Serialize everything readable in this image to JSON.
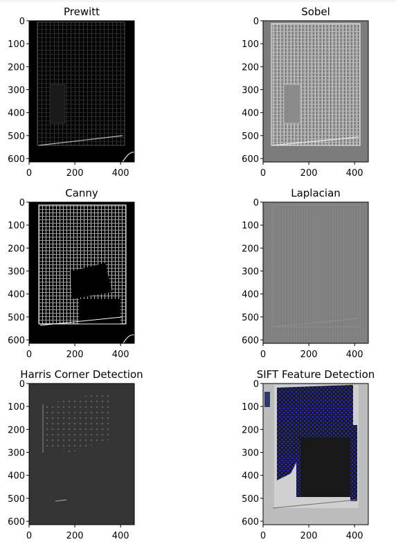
{
  "chart_data": [
    {
      "type": "image",
      "title": "Prewitt",
      "xticks": [
        0,
        200,
        400
      ],
      "yticks": [
        0,
        100,
        200,
        300,
        400,
        500,
        600
      ],
      "xlim": [
        0,
        460
      ],
      "ylim": [
        0,
        615
      ],
      "style": "dark-edges"
    },
    {
      "type": "image",
      "title": "Sobel",
      "xticks": [
        0,
        200,
        400
      ],
      "yticks": [
        0,
        100,
        200,
        300,
        400,
        500,
        600
      ],
      "xlim": [
        0,
        460
      ],
      "ylim": [
        0,
        615
      ],
      "style": "gray-emboss"
    },
    {
      "type": "image",
      "title": "Canny",
      "xticks": [
        0,
        200,
        400
      ],
      "yticks": [
        0,
        100,
        200,
        300,
        400,
        500,
        600
      ],
      "xlim": [
        0,
        460
      ],
      "ylim": [
        0,
        615
      ],
      "style": "canny"
    },
    {
      "type": "image",
      "title": "Laplacian",
      "xticks": [
        0,
        200,
        400
      ],
      "yticks": [
        0,
        100,
        200,
        300,
        400,
        500,
        600
      ],
      "xlim": [
        0,
        460
      ],
      "ylim": [
        0,
        615
      ],
      "style": "flat-gray"
    },
    {
      "type": "image",
      "title": "Harris Corner Detection",
      "xticks": [
        0,
        200,
        400
      ],
      "yticks": [
        0,
        100,
        200,
        300,
        400,
        500,
        600
      ],
      "xlim": [
        0,
        460
      ],
      "ylim": [
        0,
        615
      ],
      "style": "harris"
    },
    {
      "type": "image",
      "title": "SIFT Feature Detection",
      "xticks": [
        0,
        200,
        400
      ],
      "yticks": [
        0,
        100,
        200,
        300,
        400,
        500,
        600
      ],
      "xlim": [
        0,
        460
      ],
      "ylim": [
        0,
        615
      ],
      "style": "sift"
    }
  ]
}
